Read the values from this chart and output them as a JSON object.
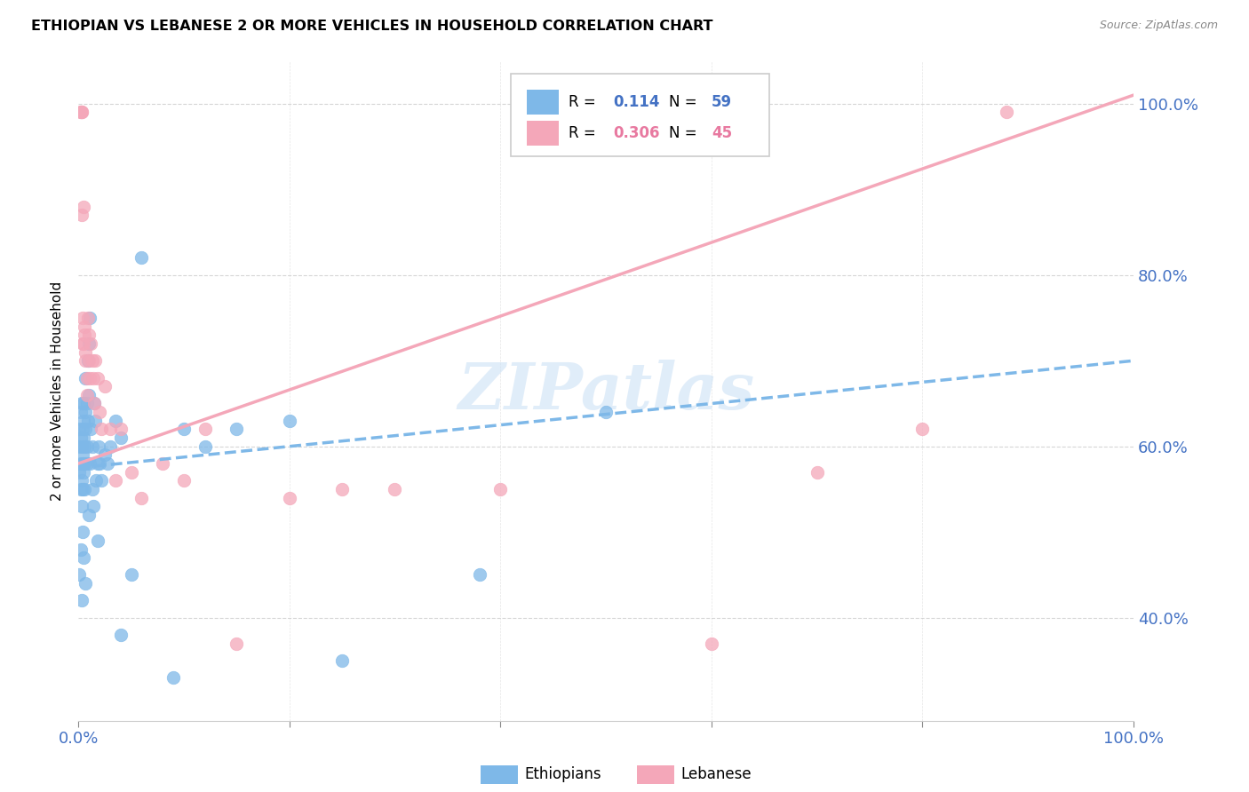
{
  "title": "ETHIOPIAN VS LEBANESE 2 OR MORE VEHICLES IN HOUSEHOLD CORRELATION CHART",
  "source": "Source: ZipAtlas.com",
  "ylabel": "2 or more Vehicles in Household",
  "legend_ethiopians": "Ethiopians",
  "legend_lebanese": "Lebanese",
  "R_ethiopians": "0.114",
  "N_ethiopians": "59",
  "R_lebanese": "0.306",
  "N_lebanese": "45",
  "color_ethiopians": "#7EB8E8",
  "color_lebanese": "#F4A7B9",
  "color_blue_text": "#4472C4",
  "color_pink_text": "#E879A0",
  "watermark_color": "#C8DFF5",
  "ethiopians_x": [
    0.001,
    0.001,
    0.001,
    0.002,
    0.002,
    0.002,
    0.002,
    0.003,
    0.003,
    0.003,
    0.003,
    0.004,
    0.004,
    0.004,
    0.004,
    0.005,
    0.005,
    0.005,
    0.005,
    0.006,
    0.006,
    0.006,
    0.007,
    0.007,
    0.007,
    0.008,
    0.008,
    0.008,
    0.009,
    0.009,
    0.01,
    0.01,
    0.011,
    0.011,
    0.012,
    0.013,
    0.013,
    0.014,
    0.015,
    0.016,
    0.017,
    0.018,
    0.019,
    0.02,
    0.022,
    0.025,
    0.028,
    0.03,
    0.035,
    0.04,
    0.05,
    0.06,
    0.1,
    0.12,
    0.15,
    0.2,
    0.25,
    0.38,
    0.5
  ],
  "ethiopians_y": [
    0.57,
    0.62,
    0.6,
    0.55,
    0.58,
    0.61,
    0.64,
    0.53,
    0.6,
    0.56,
    0.65,
    0.58,
    0.62,
    0.55,
    0.59,
    0.63,
    0.57,
    0.61,
    0.65,
    0.6,
    0.58,
    0.55,
    0.64,
    0.68,
    0.62,
    0.6,
    0.65,
    0.58,
    0.7,
    0.63,
    0.66,
    0.72,
    0.75,
    0.58,
    0.62,
    0.6,
    0.55,
    0.53,
    0.65,
    0.63,
    0.56,
    0.58,
    0.6,
    0.58,
    0.56,
    0.59,
    0.58,
    0.6,
    0.63,
    0.61,
    0.45,
    0.82,
    0.62,
    0.6,
    0.62,
    0.63,
    0.35,
    0.45,
    0.64
  ],
  "ethiopians_low_y": [
    0.45,
    0.48,
    0.42,
    0.5,
    0.47,
    0.44,
    0.52,
    0.49,
    0.38,
    0.33
  ],
  "ethiopians_low_x": [
    0.001,
    0.002,
    0.003,
    0.004,
    0.005,
    0.007,
    0.01,
    0.018,
    0.04,
    0.09
  ],
  "lebanese_x": [
    0.002,
    0.002,
    0.003,
    0.003,
    0.003,
    0.004,
    0.004,
    0.005,
    0.005,
    0.006,
    0.006,
    0.007,
    0.007,
    0.008,
    0.008,
    0.009,
    0.01,
    0.01,
    0.011,
    0.012,
    0.013,
    0.014,
    0.015,
    0.016,
    0.018,
    0.02,
    0.022,
    0.025,
    0.03,
    0.035,
    0.04,
    0.05,
    0.06,
    0.08,
    0.1,
    0.12,
    0.15,
    0.2,
    0.25,
    0.3,
    0.4,
    0.6,
    0.7,
    0.8,
    0.88
  ],
  "lebanese_y": [
    0.99,
    0.99,
    0.99,
    0.99,
    0.87,
    0.75,
    0.72,
    0.88,
    0.72,
    0.74,
    0.73,
    0.71,
    0.7,
    0.68,
    0.66,
    0.75,
    0.73,
    0.7,
    0.68,
    0.72,
    0.7,
    0.68,
    0.65,
    0.7,
    0.68,
    0.64,
    0.62,
    0.67,
    0.62,
    0.56,
    0.62,
    0.57,
    0.54,
    0.58,
    0.56,
    0.62,
    0.37,
    0.54,
    0.55,
    0.55,
    0.55,
    0.37,
    0.57,
    0.62,
    0.99
  ],
  "xlim": [
    0.0,
    1.0
  ],
  "ylim": [
    0.28,
    1.05
  ],
  "yticks": [
    0.4,
    0.6,
    0.8,
    1.0
  ],
  "ytick_labels": [
    "40.0%",
    "60.0%",
    "80.0%",
    "100.0%"
  ]
}
